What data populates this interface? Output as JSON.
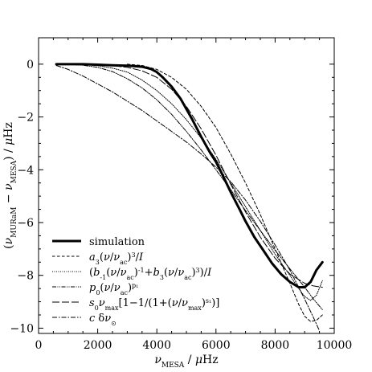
{
  "chart_data": {
    "type": "line",
    "xlabel": "ν_MESA / μHz",
    "ylabel": "(ν_MURaM − ν_MESA) / μHz",
    "xlim": [
      0,
      10000
    ],
    "ylim": [
      -10.2,
      1.0
    ],
    "xticks": [
      0,
      2000,
      4000,
      6000,
      8000,
      10000
    ],
    "yticks": [
      0,
      -2,
      -4,
      -6,
      -8,
      -10
    ],
    "legend_position": "lower-left",
    "series": [
      {
        "name": "simulation",
        "style": "solid-thick",
        "x": [
          600,
          1000,
          1500,
          2000,
          2500,
          3000,
          3500,
          3800,
          4000,
          4200,
          4500,
          4800,
          5000,
          5200,
          5500,
          5800,
          6000,
          6200,
          6500,
          6800,
          7000,
          7300,
          7600,
          7900,
          8200,
          8500,
          8800,
          9000,
          9200,
          9400,
          9600
        ],
        "y": [
          0.0,
          0.0,
          0.0,
          -0.02,
          -0.04,
          -0.06,
          -0.1,
          -0.18,
          -0.3,
          -0.5,
          -0.85,
          -1.3,
          -1.7,
          -2.1,
          -2.75,
          -3.35,
          -3.7,
          -4.15,
          -4.85,
          -5.5,
          -5.95,
          -6.55,
          -7.05,
          -7.55,
          -7.95,
          -8.25,
          -8.45,
          -8.45,
          -8.25,
          -7.8,
          -7.5
        ]
      },
      {
        "name": "a₃(ν/ν_ac)³/I",
        "style": "dashed",
        "x": [
          3000,
          3500,
          4000,
          4500,
          5000,
          5500,
          6000,
          6500,
          7000,
          7500,
          8000,
          8500,
          8800,
          9000,
          9200,
          9400,
          9600
        ],
        "y": [
          0.0,
          -0.05,
          -0.2,
          -0.5,
          -0.95,
          -1.6,
          -2.4,
          -3.4,
          -4.5,
          -5.7,
          -7.0,
          -8.3,
          -9.1,
          -9.55,
          -9.75,
          -9.7,
          -9.5
        ]
      },
      {
        "name": "(b₋₁(ν/ν_ac)⁻¹+b₃(ν/ν_ac)³)/I",
        "style": "dotted",
        "x": [
          600,
          1500,
          2000,
          2500,
          3000,
          3500,
          4000,
          4500,
          5000,
          5500,
          6000,
          6500,
          7000,
          7500,
          8000,
          8500,
          8800,
          9000,
          9200,
          9400,
          9600
        ],
        "y": [
          0.0,
          -0.02,
          -0.06,
          -0.15,
          -0.3,
          -0.6,
          -1.0,
          -1.5,
          -2.1,
          -2.8,
          -3.6,
          -4.5,
          -5.4,
          -6.3,
          -7.2,
          -8.0,
          -8.5,
          -8.8,
          -8.95,
          -8.75,
          -8.2
        ]
      },
      {
        "name": "p₀(ν/ν_ac)^p₁",
        "style": "dash-dot-dot",
        "x": [
          600,
          1000,
          1500,
          2000,
          2500,
          3000,
          3500,
          4000,
          4500,
          5000,
          5500,
          6000,
          6500,
          7000,
          7500,
          8000,
          8500,
          9000,
          9300,
          9600
        ],
        "y": [
          0.0,
          -0.01,
          -0.04,
          -0.12,
          -0.28,
          -0.55,
          -0.9,
          -1.35,
          -1.9,
          -2.55,
          -3.25,
          -4.0,
          -4.75,
          -5.55,
          -6.3,
          -7.05,
          -7.75,
          -8.45,
          -8.9,
          -9.3
        ]
      },
      {
        "name": "s₀ν_max[1−1/(1+(ν/ν_max)^s₁)]",
        "style": "long-dash",
        "x": [
          600,
          1500,
          2000,
          2500,
          3000,
          3500,
          4000,
          4500,
          5000,
          5500,
          6000,
          6500,
          7000,
          7500,
          8000,
          8500,
          9000,
          9300,
          9600
        ],
        "y": [
          0.0,
          -0.01,
          -0.03,
          -0.06,
          -0.12,
          -0.25,
          -0.5,
          -0.95,
          -1.6,
          -2.45,
          -3.45,
          -4.55,
          -5.6,
          -6.55,
          -7.35,
          -7.95,
          -8.3,
          -8.4,
          -8.45
        ]
      },
      {
        "name": "c δν_⊙",
        "style": "dash-dot",
        "x": [
          600,
          1000,
          1500,
          2000,
          2500,
          3000,
          3500,
          4000,
          4500,
          5000,
          5500,
          6000,
          6500,
          7000,
          7500,
          8000,
          8500,
          9000,
          9300,
          9500
        ],
        "y": [
          -0.05,
          -0.2,
          -0.45,
          -0.75,
          -1.05,
          -1.4,
          -1.75,
          -2.15,
          -2.55,
          -2.95,
          -3.4,
          -3.9,
          -4.45,
          -5.15,
          -5.95,
          -6.85,
          -7.8,
          -8.9,
          -9.6,
          -10.1
        ]
      }
    ]
  }
}
